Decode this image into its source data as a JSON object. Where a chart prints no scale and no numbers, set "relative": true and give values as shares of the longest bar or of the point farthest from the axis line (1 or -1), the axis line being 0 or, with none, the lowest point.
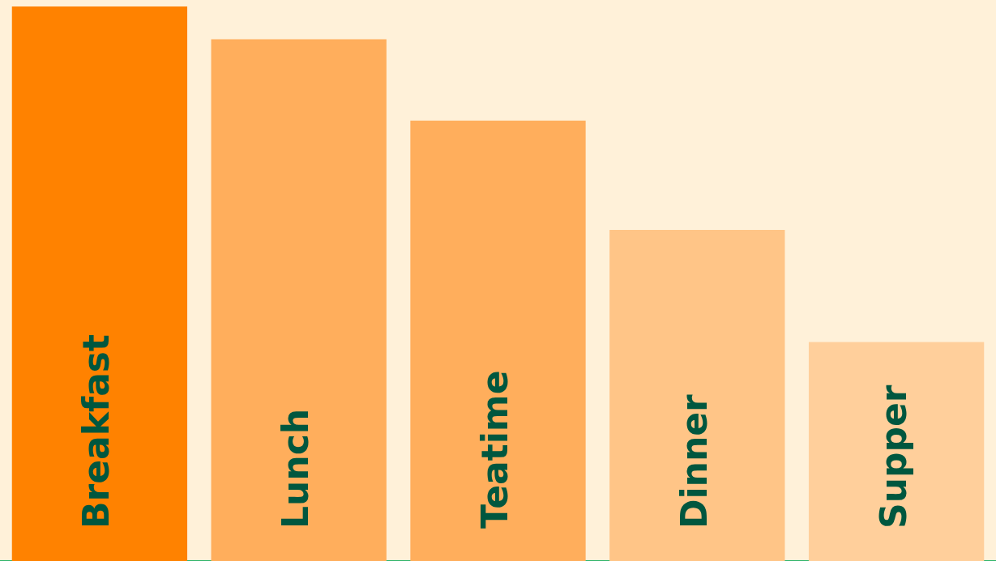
{
  "chart_data": {
    "type": "bar",
    "relative": true,
    "categories": [
      "Breakfast",
      "Lunch",
      "Teatime",
      "Dinner",
      "Supper"
    ],
    "values": [
      1,
      0.941,
      0.794,
      0.597,
      0.395
    ],
    "colors": [
      "#ff8200",
      "#ffae5c",
      "#ffae5c",
      "#ffc587",
      "#ffcf9b"
    ],
    "grid": false,
    "legend": false
  }
}
